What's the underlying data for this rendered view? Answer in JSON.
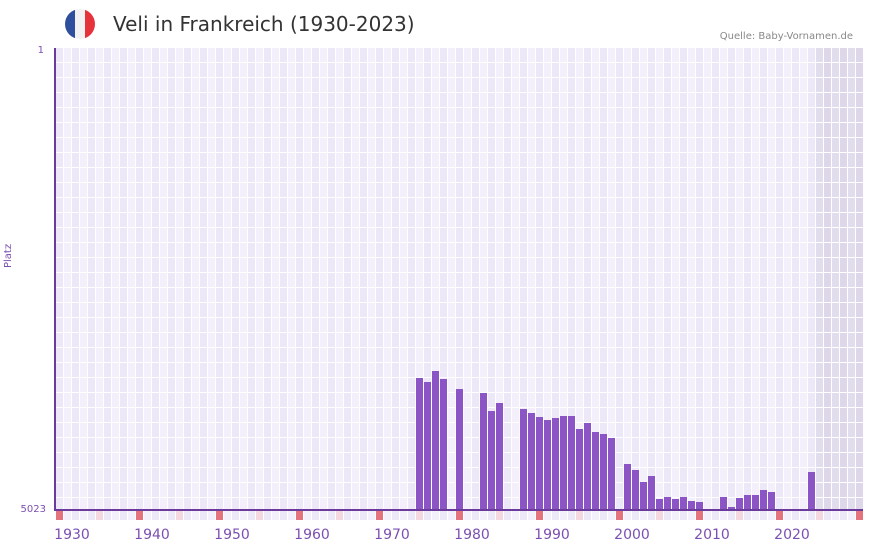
{
  "header": {
    "title": "Veli in Frankreich (1930-2023)",
    "source": "Quelle: Baby-Vornamen.de",
    "flag_colors": [
      "#2d4f9e",
      "#f2f2f2",
      "#e5323b"
    ]
  },
  "axes": {
    "y_label": "Platz",
    "y_top_tick": "1",
    "y_bottom_tick": "5023",
    "x_ticks": [
      "1930",
      "1940",
      "1950",
      "1960",
      "1970",
      "1980",
      "1990",
      "2000",
      "2010",
      "2020"
    ]
  },
  "colors": {
    "bar": "#8b55c6",
    "axis": "#6a3b9c",
    "grid_bg_a": "#ede8f8",
    "grid_bg_b": "#f3f0fb",
    "future_shade": "#e2ddec",
    "decade_marker": "#e5737e",
    "half_decade_marker": "#f5d7e0"
  },
  "chart_data": {
    "type": "bar",
    "title": "Veli in Frankreich (1930-2023)",
    "xlabel": "",
    "ylabel": "Platz",
    "y_inverted": true,
    "ylim": [
      5023,
      1
    ],
    "x_range": [
      1928,
      2028
    ],
    "grid": true,
    "categories": [
      1973,
      1974,
      1975,
      1976,
      1978,
      1981,
      1982,
      1983,
      1986,
      1987,
      1988,
      1989,
      1990,
      1991,
      1992,
      1993,
      1994,
      1995,
      1996,
      1997,
      1999,
      2000,
      2001,
      2002,
      2003,
      2004,
      2005,
      2006,
      2007,
      2008,
      2011,
      2012,
      2013,
      2014,
      2015,
      2016,
      2017,
      2022
    ],
    "values": [
      3582,
      3626,
      3506,
      3594,
      3702,
      3746,
      3943,
      3856,
      3921,
      3965,
      4008,
      4041,
      4019,
      3997,
      3997,
      4139,
      4074,
      4172,
      4194,
      4238,
      4523,
      4588,
      4719,
      4654,
      4905,
      4883,
      4905,
      4883,
      4927,
      4938,
      4883,
      4992,
      4894,
      4861,
      4861,
      4807,
      4829,
      4610
    ]
  }
}
